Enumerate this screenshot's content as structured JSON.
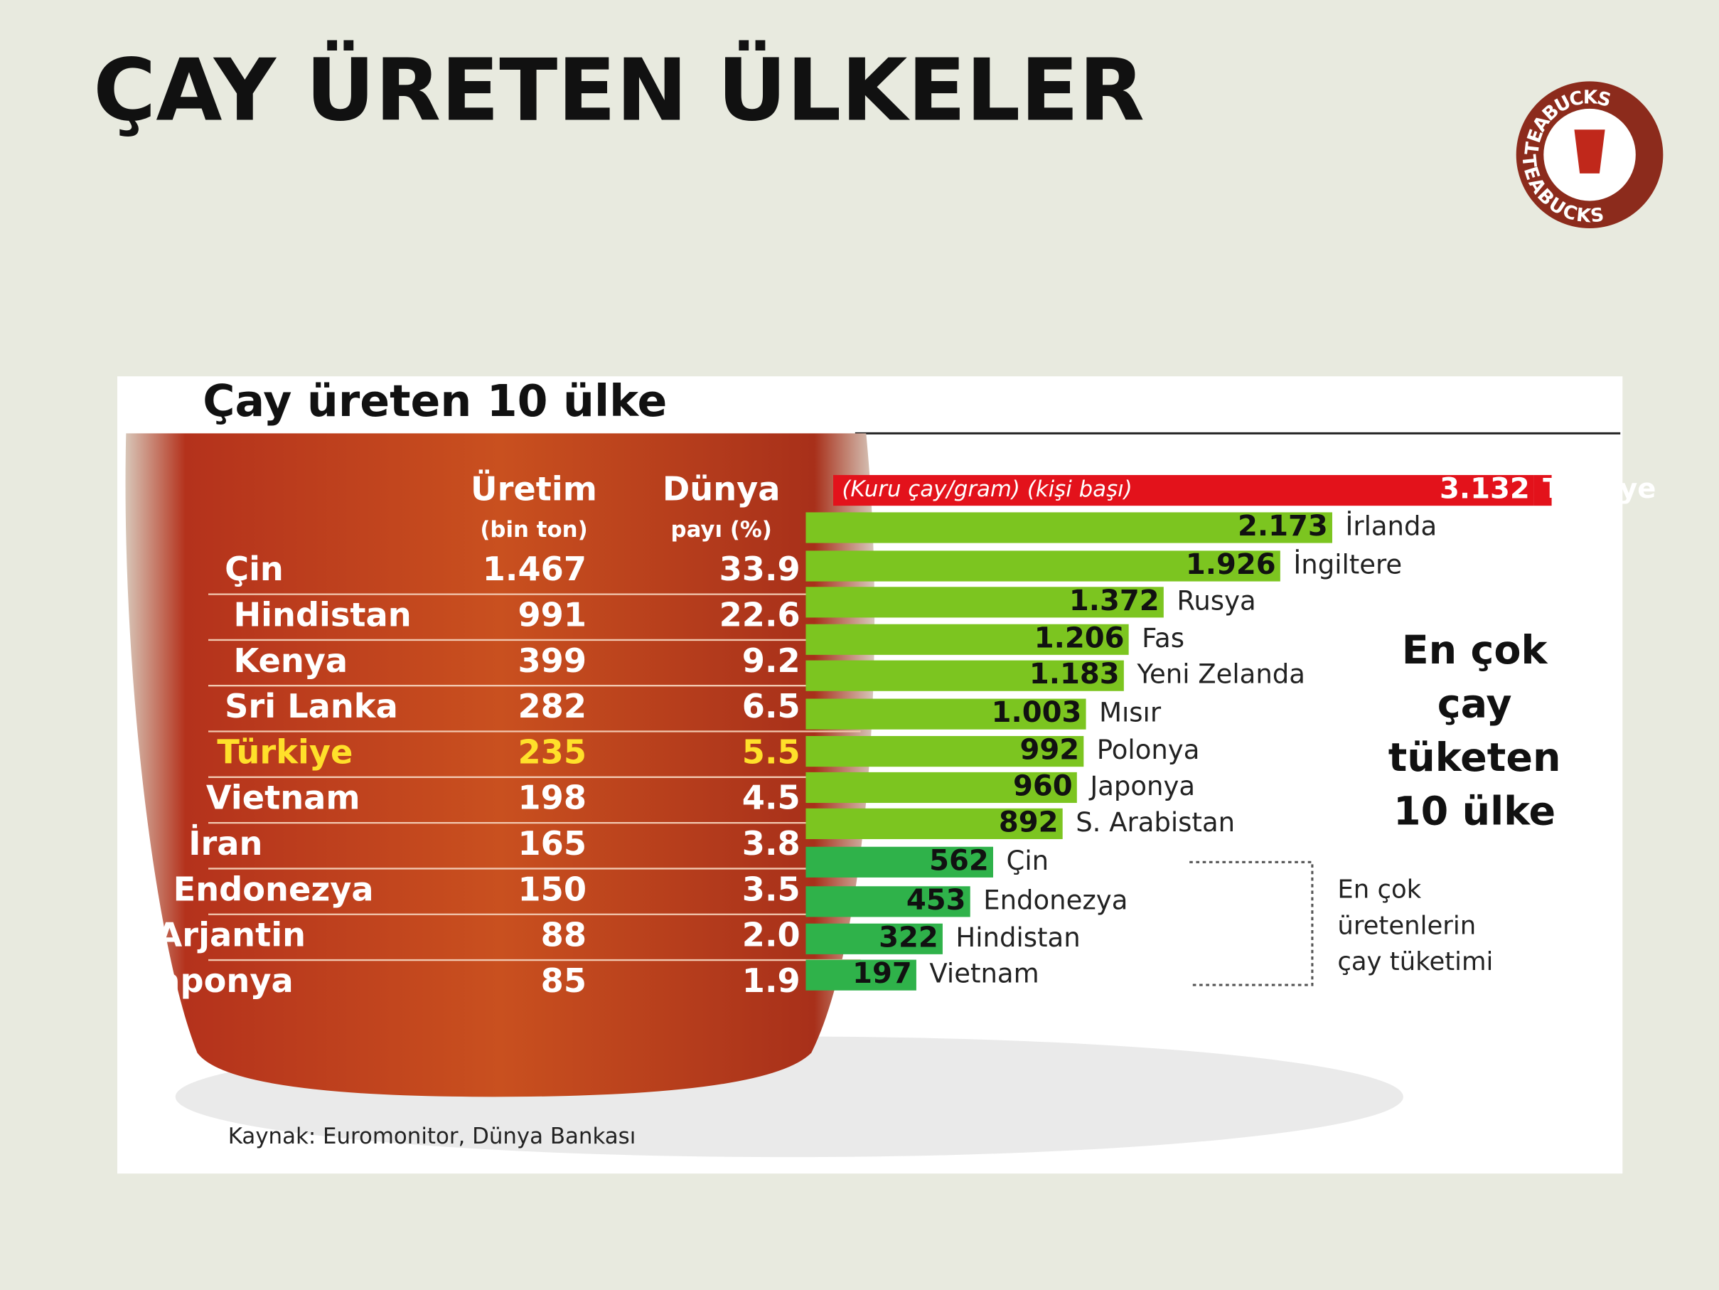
{
  "title": "ÇAY ÜRETEN ÜLKELER",
  "logo": {
    "text": "TEABUCKS"
  },
  "infographic": {
    "title": "Çay üreten 10 ülke",
    "production_table": {
      "headers": [
        [
          "Üretim",
          "(bin ton)"
        ],
        [
          "Dünya",
          "payı (%)"
        ]
      ],
      "rows": [
        [
          "Çin",
          "1.467",
          "33.9"
        ],
        [
          "Hindistan",
          "991",
          "22.6"
        ],
        [
          "Kenya",
          "399",
          "9.2"
        ],
        [
          "Sri Lanka",
          "282",
          "6.5"
        ],
        [
          "Türkiye",
          "235",
          "5.5"
        ],
        [
          "Vietnam",
          "198",
          "4.5"
        ],
        [
          "İran",
          "165",
          "3.8"
        ],
        [
          "Endonezya",
          "150",
          "3.5"
        ],
        [
          "Arjantin",
          "88",
          "2.0"
        ],
        [
          "Japonya",
          "85",
          "1.9"
        ]
      ]
    },
    "consumption": {
      "unit_note": "(Kuru çay/gram) (kişi başı)",
      "countries": [
        "Türkiye",
        "İrlanda",
        "İngiltere",
        "Rusya",
        "Fas",
        "Yeni Zelanda",
        "Mısır",
        "Polonya",
        "Japonya",
        "S. Arabistan",
        "Çin",
        "Endonezya",
        "Hindistan",
        "Vietnam"
      ],
      "values": [
        3132,
        2173,
        1926,
        1372,
        1206,
        1183,
        1003,
        992,
        960,
        892,
        562,
        453,
        322,
        197
      ],
      "value_labels": [
        "3.132",
        "2.173",
        "1.926",
        "1.372",
        "1.206",
        "1.183",
        "1.003",
        "992",
        "960",
        "892",
        "562",
        "453",
        "322",
        "197"
      ],
      "colors": [
        "#e3121b",
        "#7cc520",
        "#7cc520",
        "#7cc520",
        "#7cc520",
        "#7cc520",
        "#7cc520",
        "#7cc520",
        "#7cc520",
        "#7cc520",
        "#2fb24a",
        "#2fb24a",
        "#2fb24a",
        "#2fb24a"
      ],
      "title_lines": [
        "En çok",
        "çay",
        "tüketen",
        "10 ülke"
      ],
      "note_lines": [
        "En çok",
        "üretenlerin",
        "çay tüketimi"
      ]
    },
    "source": "Kaynak: Euromonitor, Dünya Bankası"
  }
}
